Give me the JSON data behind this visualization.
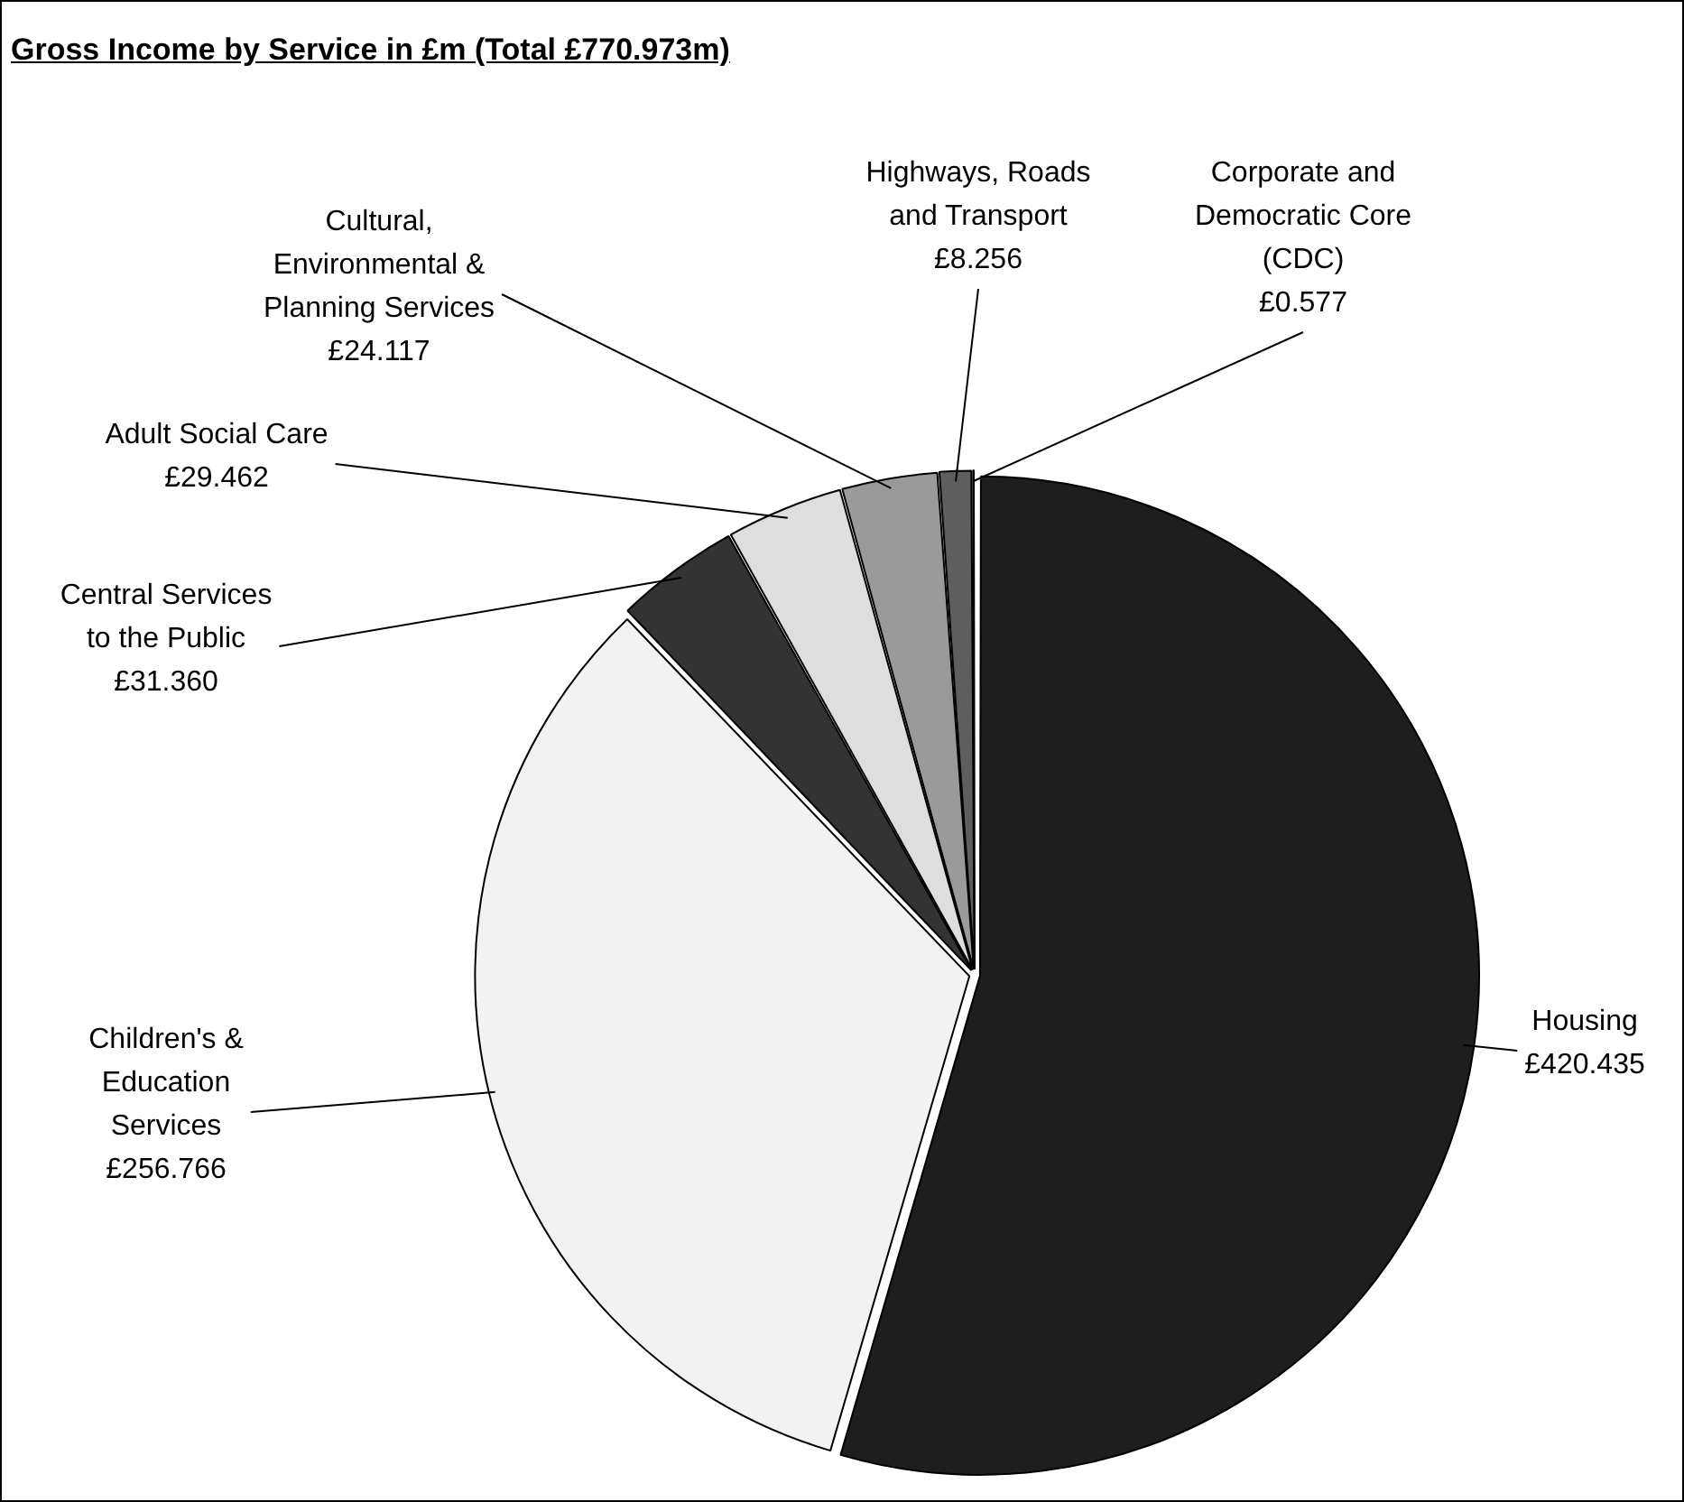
{
  "chart_data": {
    "type": "pie",
    "title": "Gross Income by Service in £m (Total £770.973m)",
    "categories": [
      "Housing",
      "Children's & Education Services",
      "Central Services to the Public",
      "Adult Social Care",
      "Cultural, Environmental & Planning Services",
      "Highways, Roads and Transport",
      "Corporate and Democratic Core (CDC)"
    ],
    "values": [
      420.435,
      256.766,
      31.36,
      29.462,
      24.117,
      8.256,
      0.577
    ],
    "colors": [
      "#1e1e1e",
      "#f2f2f2",
      "#333333",
      "#dedede",
      "#9a9a9a",
      "#5e5e5e",
      "#bdbdbd"
    ],
    "value_labels": [
      "£420.435",
      "£256.766",
      "£31.360",
      "£29.462",
      "£24.117",
      "£8.256",
      "£0.577"
    ]
  }
}
